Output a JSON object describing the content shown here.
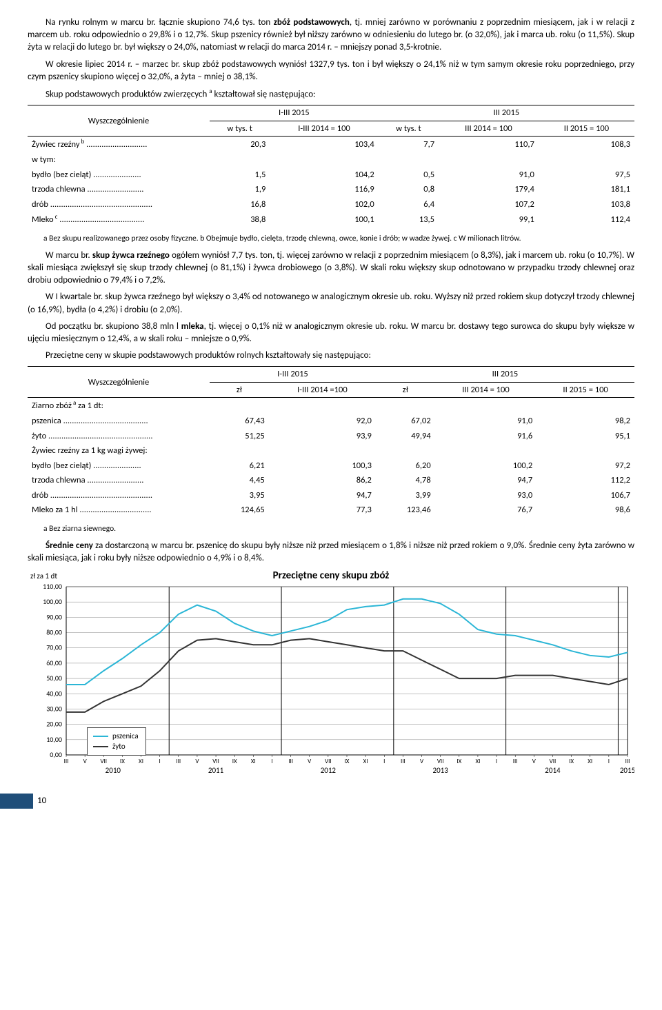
{
  "paragraphs": {
    "p1a": "Na rynku rolnym w marcu br. łącznie skupiono 74,6 tys. ton ",
    "p1b": "zbóż podstawowych",
    "p1c": ", tj. mniej zarówno w porównaniu z poprzednim miesiącem, jak i w relacji z marcem ub. roku odpowiednio o 29,8% i o 12,7%. Skup pszenicy również był niższy zarówno  w odniesieniu do lutego br. (o 32,0%), jak i marca ub. roku (o 11,5%). Skup żyta w relacji do lutego br. był większy o 24,0%, natomiast w relacji do marca 2014 r. – mniejszy ponad 3,5-krotnie.",
    "p2": "W okresie lipiec 2014 r. – marzec br. skup zbóż podstawowych wyniósł 1327,9 tys. ton i był większy o 24,1% niż w tym samym okresie roku poprzedniego, przy czym pszenicy skupiono więcej o 32,0%, a żyta – mniej o 38,1%.",
    "p3a": "Skup podstawowych produktów zwierzęcych ",
    "p3b": " kształtował się następująco:",
    "p4a": "W marcu br. ",
    "p4b": "skup żywca rzeźnego",
    "p4c": " ogółem wyniósł 7,7 tys. ton, tj. więcej zarówno w relacji z poprzednim miesiącem (o 8,3%), jak i marcem ub. roku (o 10,7%). W skali miesiąca zwiększył się skup trzody chlewnej (o 81,1%) i żywca drobiowego (o 3,8%). W skali roku większy skup odnotowano w przypadku trzody chlewnej oraz drobiu odpowiednio o 79,4% i o 7,2%.",
    "p5": "W I kwartale br. skup żywca rzeźnego był większy o 3,4% od notowanego w analogicznym okresie ub. roku. Wyższy niż przed rokiem skup dotyczył trzody chlewnej (o 16,9%), bydła (o 4,2%) i drobiu (o 2,0%).",
    "p6a": "Od początku br. skupiono 38,8 mln l ",
    "p6b": "mleka",
    "p6c": ", tj. więcej o 0,1% niż w analogicznym okresie ub. roku. W marcu br. dostawy tego surowca do skupu były większe w ujęciu miesięcznym o 12,4%, a w skali roku – mniejsze o 0,9%.",
    "p7": "Przeciętne ceny w skupie podstawowych produktów rolnych kształtowały się następująco:",
    "p8a": "Średnie ceny",
    "p8b": " za dostarczoną w marcu br. pszenicę do skupu były niższe niż przed miesiącem o 1,8% i niższe niż przed rokiem o 9,0%. Średnie ceny żyta zarówno w skali miesiąca, jak i roku były niższe odpowiednio o 4,9% i o 8,4%."
  },
  "footnotes": {
    "t1": "a Bez skupu realizowanego przez osoby fizyczne. b Obejmuje bydło, cielęta, trzodę chlewną, owce, konie i drób; w wadze żywej. c W milionach litrów.",
    "t2": "a Bez ziarna siewnego."
  },
  "table1": {
    "head": {
      "wysz": "Wyszczególnienie",
      "g1": "I-III 2015",
      "g2": "III 2015",
      "c1": "w tys. t",
      "c2": "I-III 2014 = 100",
      "c3": "w tys. t",
      "c4": "III 2014 = 100",
      "c5": "II 2015 = 100"
    },
    "rows": [
      {
        "label": "Żywiec rzeźny",
        "sup": "b",
        "dots": " ............................",
        "v": [
          "20,3",
          "103,4",
          "7,7",
          "110,7",
          "108,3"
        ]
      },
      {
        "label": "   w tym:",
        "v": [
          "",
          "",
          "",
          "",
          ""
        ]
      },
      {
        "label": "   bydło (bez cieląt) ......................",
        "v": [
          "1,5",
          "104,2",
          "0,5",
          "91,0",
          "97,5"
        ]
      },
      {
        "label": "   trzoda chlewna ..........................",
        "v": [
          "1,9",
          "116,9",
          "0,8",
          "179,4",
          "181,1"
        ]
      },
      {
        "label": "   drób ...............................................",
        "v": [
          "16,8",
          "102,0",
          "6,4",
          "107,2",
          "103,8"
        ]
      },
      {
        "label": "Mleko",
        "sup": "c",
        "dots": " .......................................",
        "v": [
          "38,8",
          "100,1",
          "13,5",
          "99,1",
          "112,4"
        ]
      }
    ]
  },
  "table2": {
    "head": {
      "wysz": "Wyszczególnienie",
      "g1": "I-III 2015",
      "g2": "III 2015",
      "c1": "zł",
      "c2": "I-III 2014 =100",
      "c3": "zł",
      "c4": "III 2014 = 100",
      "c5": "II 2015 = 100"
    },
    "rows": [
      {
        "label": "Ziarno zbóż",
        "sup": "a",
        "dots": " za 1 dt:",
        "v": [
          "",
          "",
          "",
          "",
          ""
        ]
      },
      {
        "label": "   pszenica .......................................",
        "v": [
          "67,43",
          "92,0",
          "67,02",
          "91,0",
          "98,2"
        ]
      },
      {
        "label": "   żyto ................................................",
        "v": [
          "51,25",
          "93,9",
          "49,94",
          "91,6",
          "95,1"
        ]
      },
      {
        "label": "Żywiec rzeźny za 1 kg wagi żywej:",
        "v": [
          "",
          "",
          "",
          "",
          ""
        ]
      },
      {
        "label": "   bydło (bez cieląt) ......................",
        "v": [
          "6,21",
          "100,3",
          "6,20",
          "100,2",
          "97,2"
        ]
      },
      {
        "label": "   trzoda chlewna ..........................",
        "v": [
          "4,45",
          "86,2",
          "4,78",
          "94,7",
          "112,2"
        ]
      },
      {
        "label": "   drób ...............................................",
        "v": [
          "3,95",
          "94,7",
          "3,99",
          "93,0",
          "106,7"
        ]
      },
      {
        "label": "Mleko za 1 hl .................................",
        "v": [
          "124,65",
          "77,3",
          "123,46",
          "76,7",
          "98,6"
        ]
      }
    ]
  },
  "chart": {
    "title": "Przeciętne ceny skupu zbóż",
    "ylabel": "zł za 1 dt",
    "ylim": [
      0,
      110
    ],
    "ytick_step": 10,
    "yticks": [
      "0,00",
      "10,00",
      "20,00",
      "30,00",
      "40,00",
      "50,00",
      "60,00",
      "70,00",
      "80,00",
      "90,00",
      "100,00",
      "110,00"
    ],
    "years": [
      "2010",
      "2011",
      "2012",
      "2013",
      "2014",
      "2015"
    ],
    "x_year_ticks": [
      "III",
      "V",
      "VII",
      "IX",
      "XI",
      "I",
      "III",
      "V",
      "VII",
      "IX",
      "XI",
      "I",
      "III",
      "V",
      "VII",
      "IX",
      "XI",
      "I",
      "III",
      "V",
      "VII",
      "IX",
      "XI",
      "I",
      "III",
      "V",
      "VII",
      "IX",
      "XI",
      "I",
      "III"
    ],
    "series": {
      "pszenica": {
        "color": "#2bb6d6",
        "label": "pszenica",
        "values": [
          46,
          46,
          55,
          63,
          72,
          80,
          92,
          98,
          94,
          86,
          81,
          78,
          81,
          84,
          88,
          95,
          97,
          98,
          102,
          102,
          99,
          92,
          82,
          79,
          78,
          75,
          72,
          68,
          65,
          64,
          67
        ]
      },
      "zyto": {
        "color": "#333333",
        "label": "żyto",
        "values": [
          28,
          28,
          35,
          40,
          45,
          55,
          68,
          75,
          76,
          74,
          72,
          72,
          75,
          76,
          74,
          72,
          70,
          68,
          68,
          62,
          56,
          50,
          50,
          50,
          52,
          52,
          52,
          50,
          48,
          46,
          50
        ]
      }
    },
    "grid_color": "#666666",
    "plot_bg": "#ffffff",
    "year_sep_color": "#000000",
    "legend": {
      "pszenica": "pszenica",
      "zyto": "żyto"
    }
  },
  "page_number": "10"
}
